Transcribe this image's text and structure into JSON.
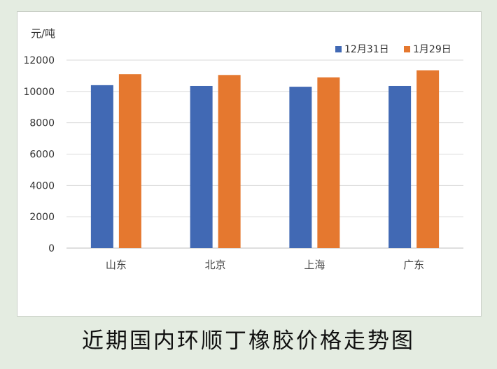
{
  "caption": "近期国内环顺丁橡胶价格走势图",
  "chart_data": {
    "type": "bar",
    "unit_label": "元/吨",
    "categories": [
      "山东",
      "北京",
      "上海",
      "广东"
    ],
    "series": [
      {
        "name": "12月31日",
        "color": "#4169b4",
        "values": [
          10400,
          10350,
          10300,
          10350
        ]
      },
      {
        "name": "1月29日",
        "color": "#e5782f",
        "values": [
          11100,
          11050,
          10900,
          11350
        ]
      }
    ],
    "ylim": [
      0,
      12000
    ],
    "yticks": [
      "0",
      "2000",
      "4000",
      "6000",
      "8000",
      "10000",
      "12000"
    ],
    "grid": true,
    "legend_position": "top-right"
  }
}
